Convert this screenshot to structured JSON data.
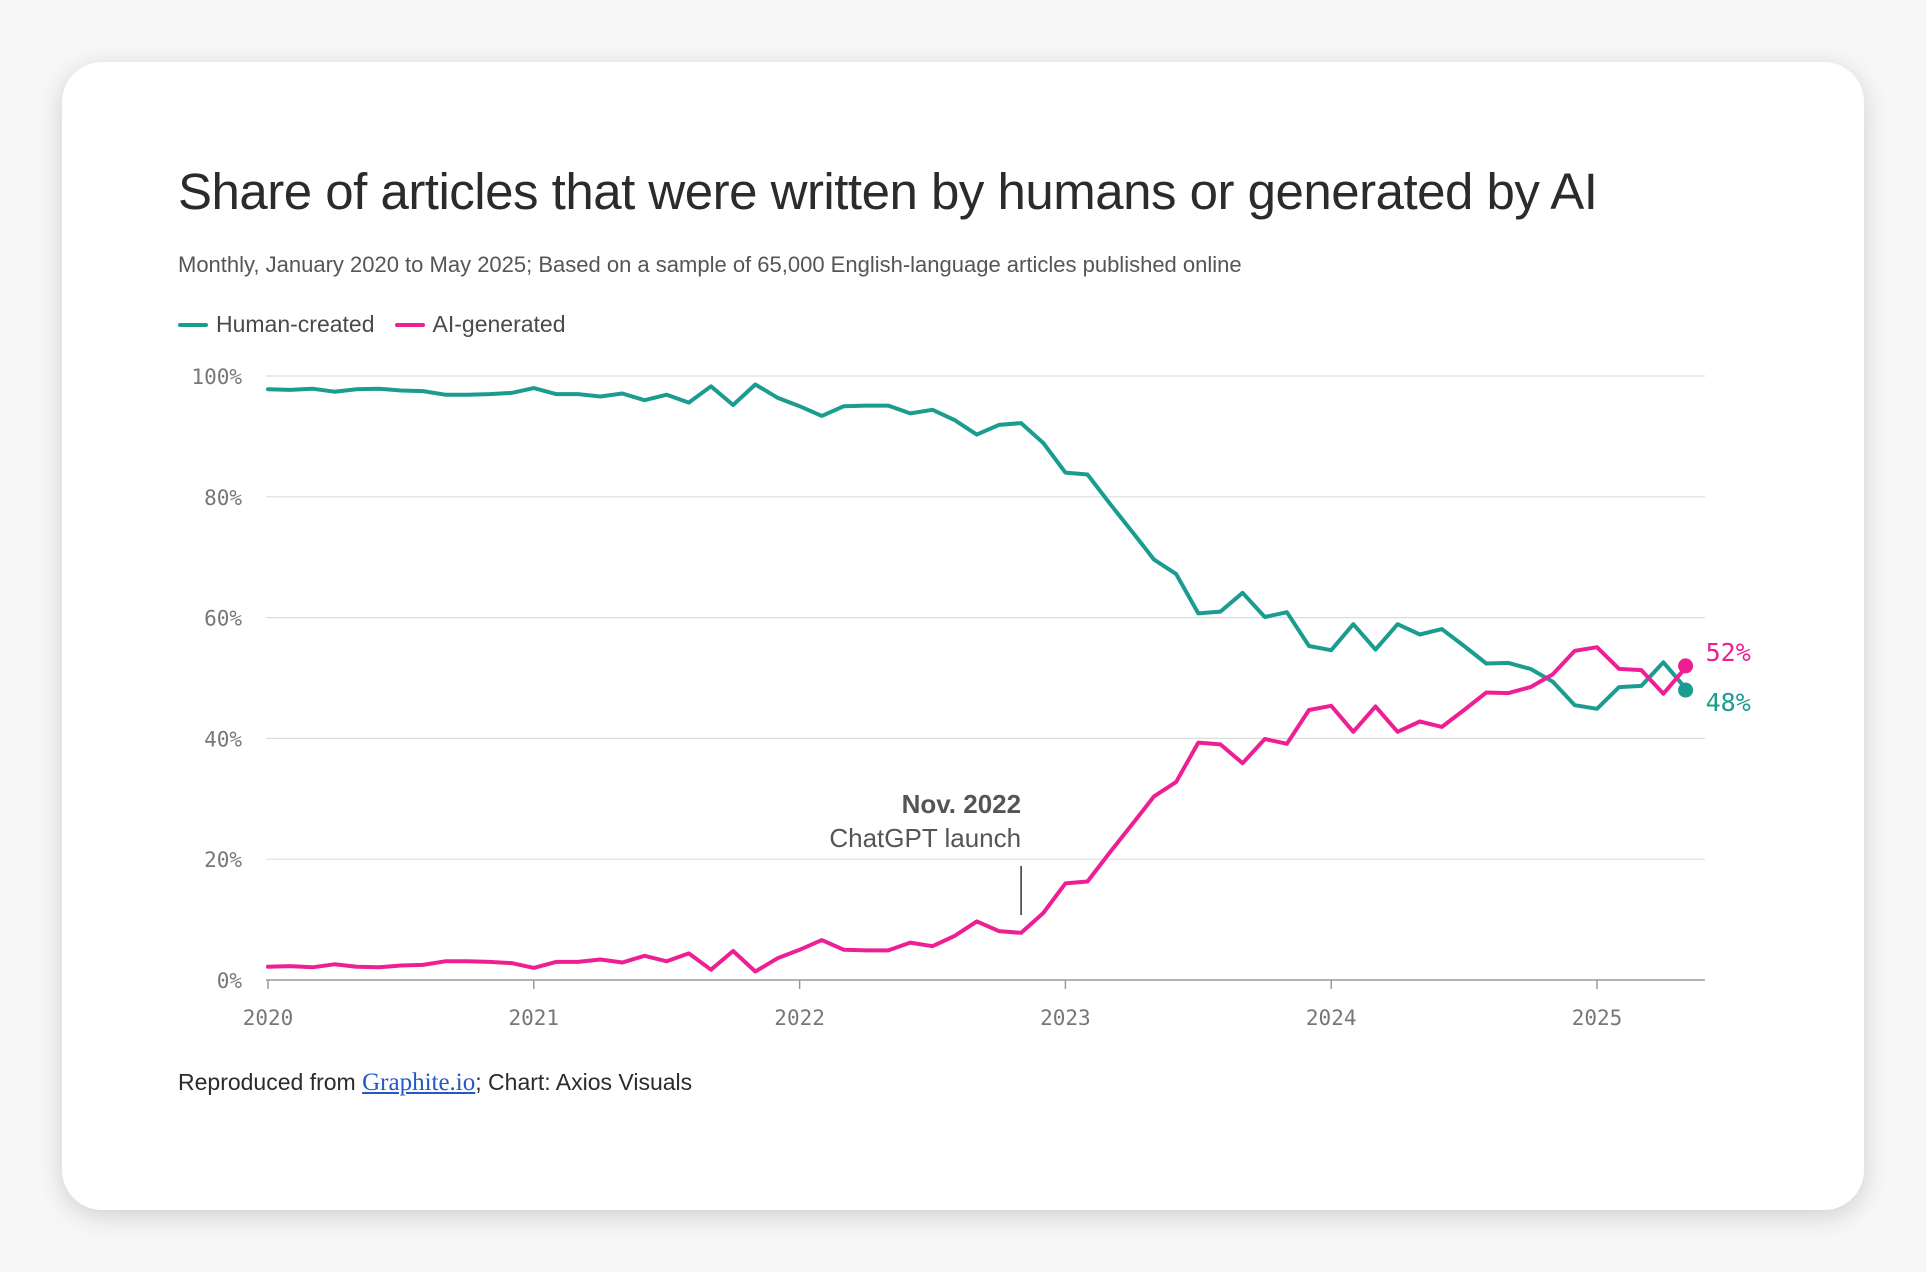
{
  "card": {
    "title": "Share of articles that were written by humans or generated by AI",
    "subtitle": "Monthly, January 2020 to May 2025; Based on a sample of 65,000 English-language articles published online",
    "source_prefix": "Reproduced from ",
    "source_link": "Graphite.io",
    "source_suffix": "; Chart: Axios Visuals"
  },
  "chart_data": {
    "type": "line",
    "title": "Share of articles that were written by humans or generated by AI",
    "subtitle": "Monthly, January 2020 to May 2025; Based on a sample of 65,000 English-language articles published online",
    "xlabel": "",
    "ylabel": "",
    "x_start": "2020-01",
    "x_ticks": [
      "2020",
      "2021",
      "2022",
      "2023",
      "2024",
      "2025"
    ],
    "ylim": [
      0,
      100
    ],
    "y_ticks": [
      "0%",
      "20%",
      "40%",
      "60%",
      "80%",
      "100%"
    ],
    "grid": true,
    "legend_position": "top-left",
    "series": [
      {
        "name": "Human-created",
        "color": "#1a9c91",
        "end_label": "48%",
        "values": [
          97.8,
          97.7,
          97.9,
          97.4,
          97.8,
          97.9,
          97.6,
          97.5,
          96.9,
          96.9,
          97.0,
          97.2,
          98.0,
          97.0,
          97.0,
          96.6,
          97.1,
          96.0,
          96.9,
          95.6,
          98.3,
          95.2,
          98.6,
          96.4,
          95.0,
          93.4,
          95.0,
          95.1,
          95.1,
          93.8,
          94.4,
          92.7,
          90.3,
          91.9,
          92.2,
          88.9,
          84.0,
          83.7,
          78.9,
          74.3,
          69.6,
          67.2,
          60.7,
          61.0,
          64.1,
          60.1,
          60.9,
          55.3,
          54.6,
          58.9,
          54.7,
          58.9,
          57.2,
          58.1,
          55.3,
          52.4,
          52.5,
          51.5,
          49.4,
          45.5,
          44.9,
          48.5,
          48.7,
          52.6,
          48.3
        ],
        "end_value": 48
      },
      {
        "name": "AI-generated",
        "color": "#ee1f94",
        "end_label": "52%",
        "values": [
          2.2,
          2.3,
          2.1,
          2.6,
          2.2,
          2.1,
          2.4,
          2.5,
          3.1,
          3.1,
          3.0,
          2.8,
          2.0,
          3.0,
          3.0,
          3.4,
          2.9,
          4.0,
          3.1,
          4.4,
          1.7,
          4.8,
          1.4,
          3.6,
          5.0,
          6.6,
          5.0,
          4.9,
          4.9,
          6.2,
          5.6,
          7.3,
          9.7,
          8.1,
          7.8,
          11.1,
          16.0,
          16.3,
          21.1,
          25.7,
          30.4,
          32.8,
          39.3,
          39.0,
          35.9,
          39.9,
          39.1,
          44.7,
          45.4,
          41.1,
          45.3,
          41.1,
          42.8,
          41.9,
          44.7,
          47.6,
          47.5,
          48.5,
          50.6,
          54.5,
          55.1,
          51.5,
          51.3,
          47.4,
          51.7
        ],
        "end_value": 52
      }
    ],
    "annotations": [
      {
        "x": "2022-11",
        "bold_text": "Nov. 2022",
        "text": "ChatGPT launch"
      }
    ]
  }
}
